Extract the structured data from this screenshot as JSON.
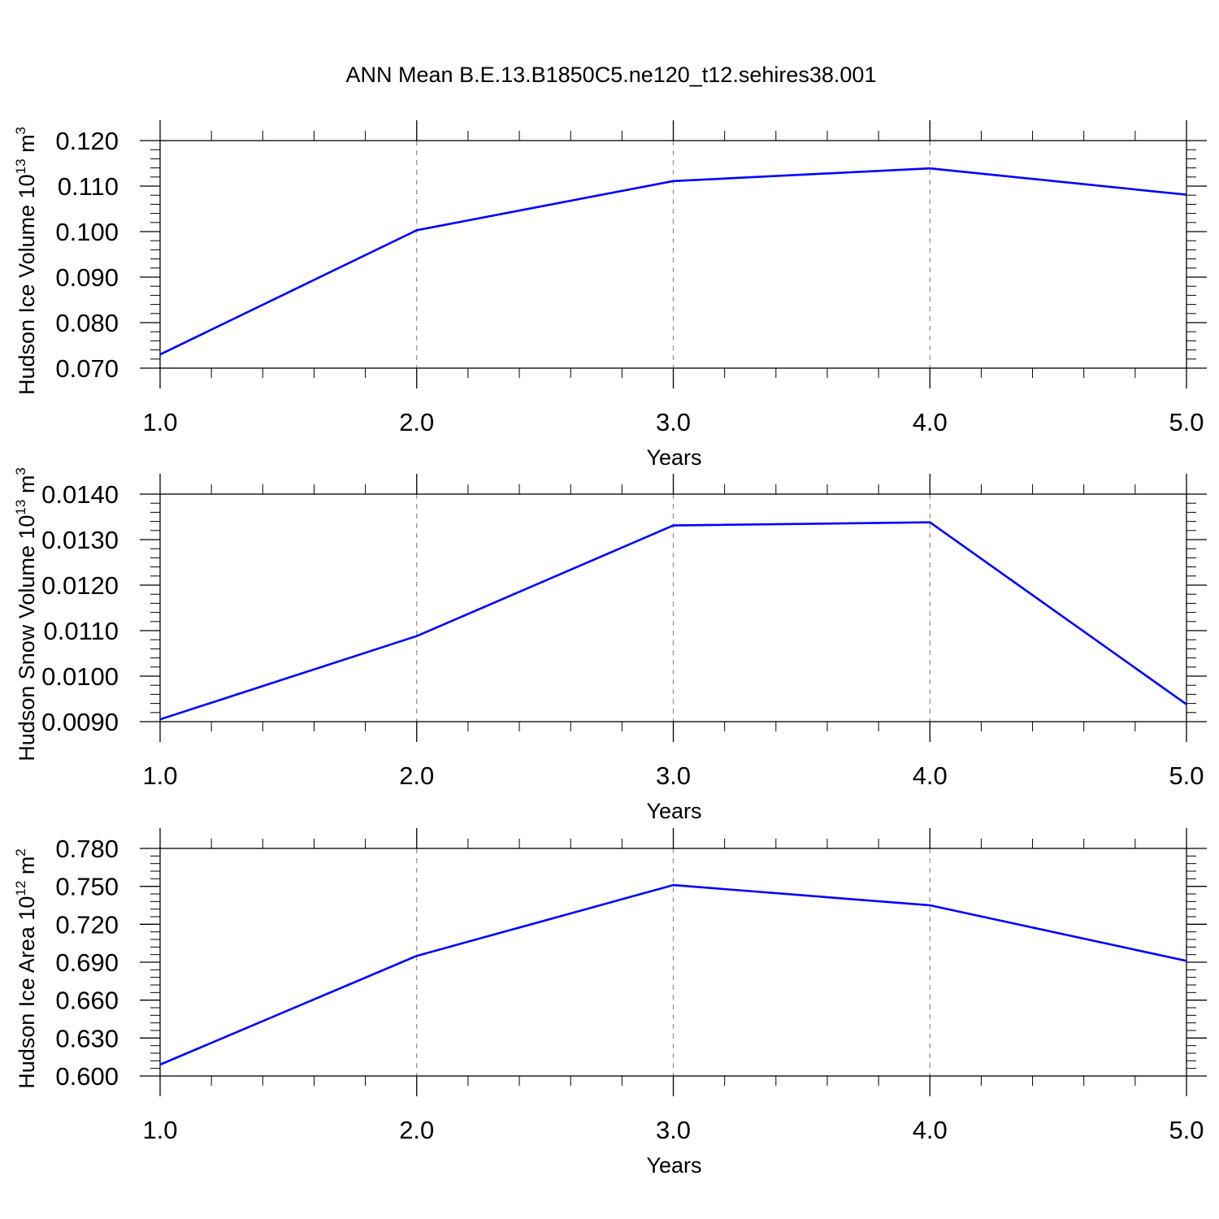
{
  "title": "ANN Mean B.E.13.B1850C5.ne120_t12.sehires38.001",
  "colors": {
    "line": "#0000ff",
    "axis": "#000000",
    "grid": "#8c8c8c"
  },
  "chart_data": [
    {
      "type": "line",
      "ylabel": {
        "text": "Hudson Ice Volume 10",
        "exp": "13",
        "unit": " m",
        "unit_exp": "3"
      },
      "xlabel": "Years",
      "xlim": [
        1.0,
        5.0
      ],
      "ylim": [
        0.07,
        0.12
      ],
      "xticks": [
        "1.0",
        "2.0",
        "3.0",
        "4.0",
        "5.0"
      ],
      "yticks": [
        "0.070",
        "0.080",
        "0.090",
        "0.100",
        "0.110",
        "0.120"
      ],
      "x": [
        1,
        2,
        3,
        4,
        5
      ],
      "series": [
        {
          "values": [
            0.073,
            0.1003,
            0.1111,
            0.1139,
            0.1081
          ]
        }
      ],
      "grid": "dashed vertical lines at major x ticks"
    },
    {
      "type": "line",
      "ylabel": {
        "text": "Hudson Snow Volume 10",
        "exp": "13",
        "unit": " m",
        "unit_exp": "3"
      },
      "xlabel": "Years",
      "xlim": [
        1.0,
        5.0
      ],
      "ylim": [
        0.009,
        0.014
      ],
      "xticks": [
        "1.0",
        "2.0",
        "3.0",
        "4.0",
        "5.0"
      ],
      "yticks": [
        "0.0090",
        "0.0100",
        "0.0110",
        "0.0120",
        "0.0130",
        "0.0140"
      ],
      "x": [
        1,
        2,
        3,
        4,
        5
      ],
      "series": [
        {
          "values": [
            0.00905,
            0.01088,
            0.01331,
            0.01338,
            0.00938
          ]
        }
      ],
      "grid": "dashed vertical lines at major x ticks"
    },
    {
      "type": "line",
      "ylabel": {
        "text": "Hudson Ice Area 10",
        "exp": "12",
        "unit": " m",
        "unit_exp": "2"
      },
      "xlabel": "Years",
      "xlim": [
        1.0,
        5.0
      ],
      "ylim": [
        0.6,
        0.78
      ],
      "xticks": [
        "1.0",
        "2.0",
        "3.0",
        "4.0",
        "5.0"
      ],
      "yticks": [
        "0.600",
        "0.630",
        "0.660",
        "0.690",
        "0.720",
        "0.750",
        "0.780"
      ],
      "x": [
        1,
        2,
        3,
        4,
        5
      ],
      "series": [
        {
          "values": [
            0.609,
            0.695,
            0.751,
            0.735,
            0.691
          ]
        }
      ],
      "grid": "dashed vertical lines at major x ticks"
    }
  ]
}
